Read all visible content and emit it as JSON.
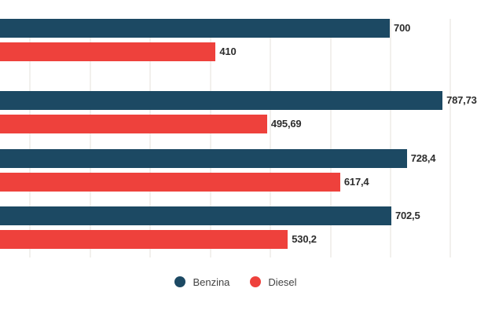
{
  "chart_data": {
    "type": "bar",
    "orientation": "horizontal",
    "title": "",
    "categories_visible": false,
    "categories": [
      "",
      "",
      "",
      ""
    ],
    "series": [
      {
        "name": "Benzina",
        "color": "#1c4963",
        "values": [
          787.73,
          728.4,
          702.5,
          700
        ],
        "labels": [
          "787,73",
          "728,4",
          "702,5",
          "700"
        ]
      },
      {
        "name": "Diesel",
        "color": "#ee413c",
        "values": [
          495.69,
          617.4,
          530.2,
          410
        ],
        "labels": [
          "495,69",
          "617,4",
          "530,2",
          "410"
        ]
      }
    ],
    "x_axis": {
      "visible_min": 51,
      "visible_max": 836,
      "gridline_values": [
        100,
        200,
        300,
        400,
        500,
        600,
        700,
        800
      ],
      "grid": true,
      "tick_labels_visible": false
    },
    "legend": {
      "position": "bottom",
      "entries": [
        {
          "label": "Benzina",
          "color": "#1c4963"
        },
        {
          "label": "Diesel",
          "color": "#ee413c"
        }
      ]
    },
    "value_labels_position": "outside-end",
    "note_clipping": "first value label 787,73 is clipped at right image edge"
  },
  "colors": {
    "background": "#ffffff",
    "gridline": "#f2f0ed",
    "value_label_text": "#2d2d2d",
    "legend_text": "#424242"
  }
}
